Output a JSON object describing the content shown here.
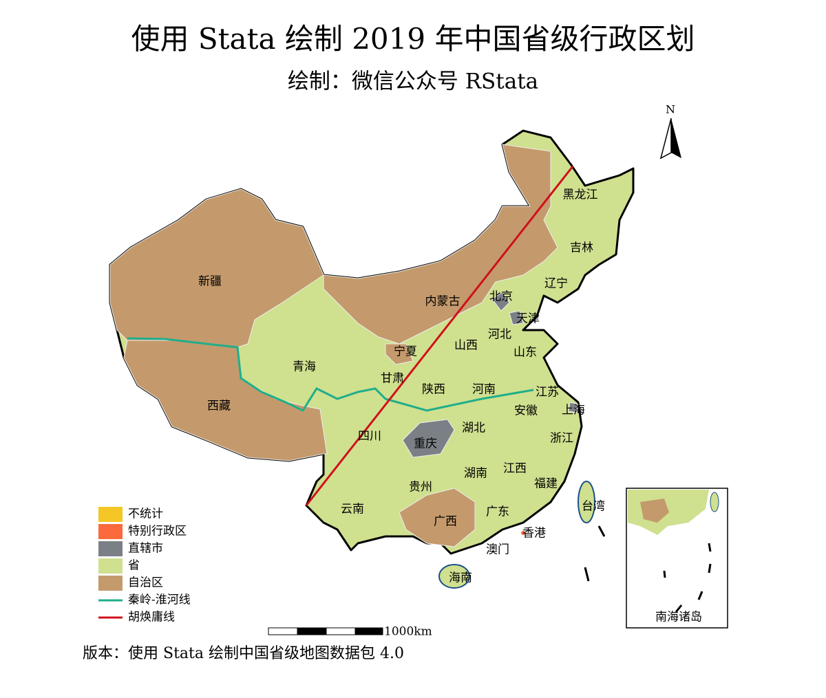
{
  "title": "使用 Stata 绘制 2019 年中国省级行政区划",
  "subtitle": "绘制：微信公众号 RStata",
  "north": "N",
  "legend": [
    {
      "label": "不统计",
      "color": "#f5c726",
      "kind": "patch"
    },
    {
      "label": "特别行政区",
      "color": "#fb6a3c",
      "kind": "patch"
    },
    {
      "label": "直辖市",
      "color": "#7b7f86",
      "kind": "patch"
    },
    {
      "label": "省",
      "color": "#cfe08f",
      "kind": "patch"
    },
    {
      "label": "自治区",
      "color": "#c49a6c",
      "kind": "patch"
    },
    {
      "label": "秦岭-淮河线",
      "color": "#1fae8a",
      "kind": "line"
    },
    {
      "label": "胡焕庸线",
      "color": "#d0101a",
      "kind": "line"
    }
  ],
  "provinces": [
    "新疆",
    "西藏",
    "青海",
    "甘肃",
    "宁夏",
    "内蒙古",
    "黑龙江",
    "吉林",
    "辽宁",
    "北京",
    "天津",
    "河北",
    "山西",
    "陕西",
    "山东",
    "河南",
    "江苏",
    "上海",
    "安徽",
    "湖北",
    "四川",
    "重庆",
    "浙江",
    "江西",
    "湖南",
    "贵州",
    "云南",
    "广西",
    "广东",
    "福建",
    "台湾",
    "香港",
    "澳门",
    "海南"
  ],
  "scale_label": "1000km",
  "inset_label": "南海诸岛",
  "footnote": "版本：使用 Stata 绘制中国省级地图数据包 4.0"
}
